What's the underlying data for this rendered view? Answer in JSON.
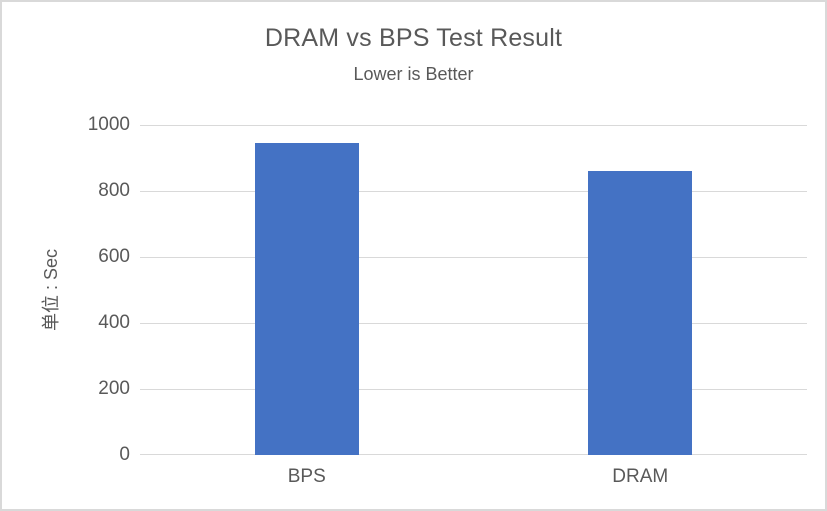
{
  "chart": {
    "colors": {
      "bar": "#4472C4",
      "gridline": "#D9D9D9",
      "axis_line": "#D9D9D9",
      "text": "#595959",
      "frame_border": "#D9D9D9",
      "background": "#FFFFFF"
    }
  },
  "chart_data": {
    "type": "bar",
    "title": "DRAM vs BPS Test Result",
    "subtitle": "Lower is Better",
    "categories": [
      "BPS",
      "DRAM"
    ],
    "values": [
      944,
      862
    ],
    "xlabel": "",
    "ylabel": "单位 : Sec",
    "ylim": [
      0,
      1000
    ],
    "yticks": [
      0,
      200,
      400,
      600,
      800,
      1000
    ],
    "grid": true,
    "legend": false,
    "bar_color": "#4472C4"
  }
}
